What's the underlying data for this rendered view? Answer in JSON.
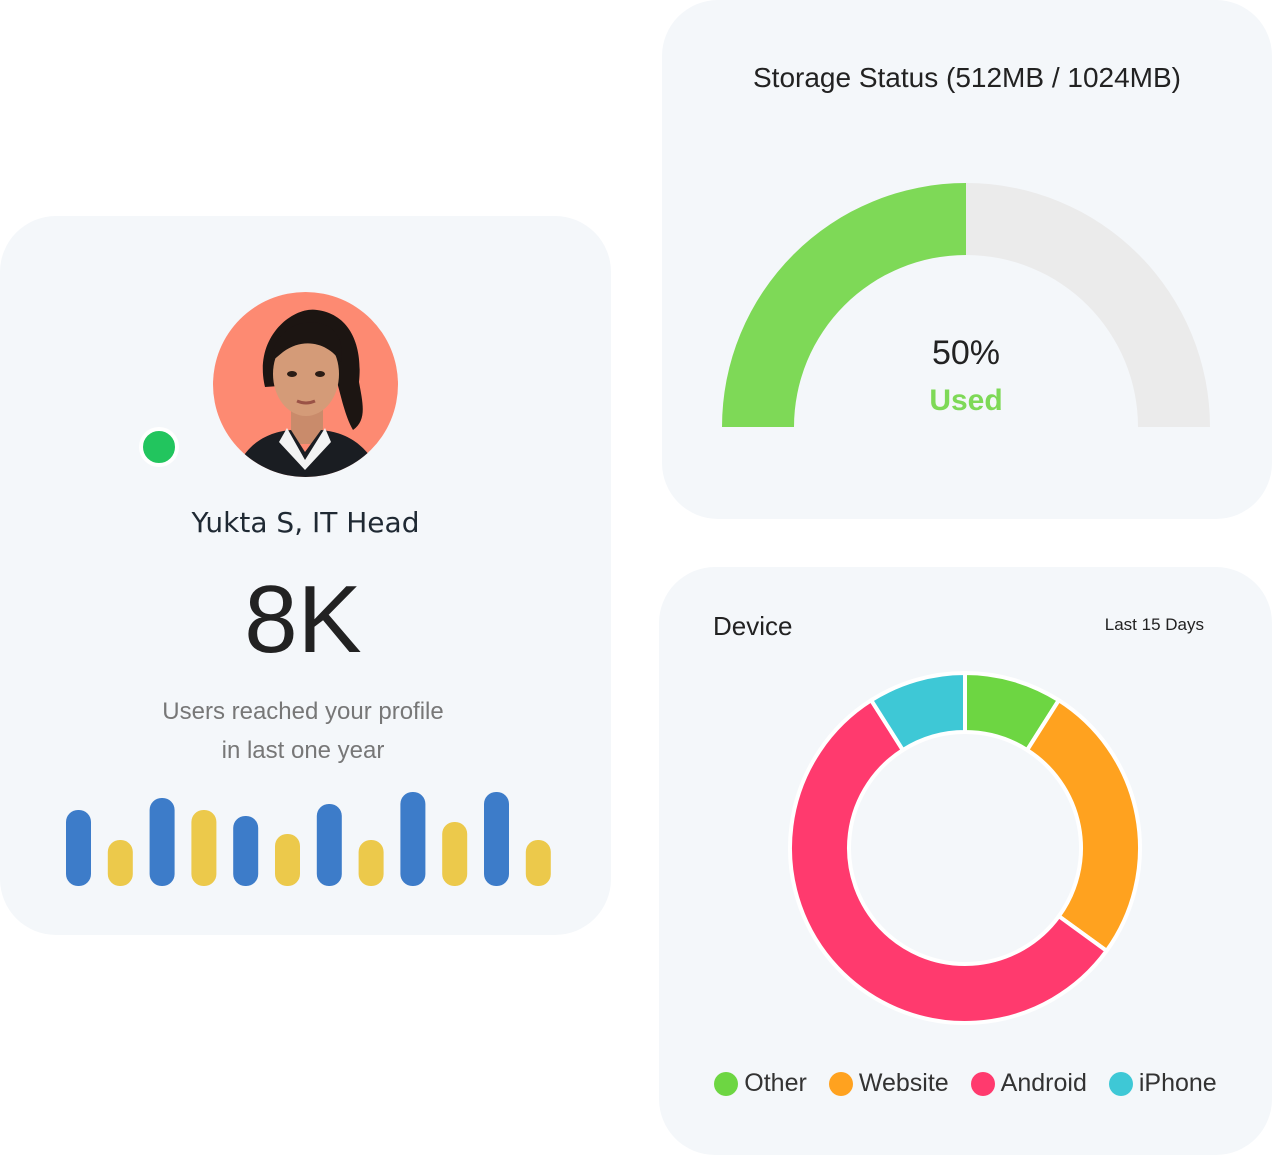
{
  "profile": {
    "name": "Yukta S, IT Head",
    "count": "8K",
    "caption_line1": "Users reached your profile",
    "caption_line2": "in last one year",
    "online": true,
    "status_color": "#22c55e",
    "avatar_bg": "#fd8a72"
  },
  "activity_bars": {
    "values": [
      76,
      46,
      88,
      76,
      70,
      52,
      82,
      46,
      94,
      64,
      94,
      46
    ],
    "colors": [
      "#3d7cc9",
      "#ecc94b",
      "#3d7cc9",
      "#ecc94b",
      "#3d7cc9",
      "#ecc94b",
      "#3d7cc9",
      "#ecc94b",
      "#3d7cc9",
      "#ecc94b",
      "#3d7cc9",
      "#ecc94b"
    ]
  },
  "storage": {
    "title": "Storage Status (512MB / 1024MB)",
    "percent_text": "50%",
    "label": "Used",
    "used_fraction": 0.5,
    "used_color": "#7ed957",
    "free_color": "#ebebeb"
  },
  "device": {
    "title": "Device",
    "range": "Last 15 Days",
    "chart_data": {
      "type": "pie",
      "categories": [
        "Other",
        "Website",
        "Android",
        "iPhone"
      ],
      "values": [
        9,
        26,
        56,
        9
      ],
      "colors": [
        "#6dd642",
        "#ffa21f",
        "#ff3a6e",
        "#3ec8d6"
      ]
    },
    "legend": [
      {
        "label": "Other",
        "color": "#6dd642"
      },
      {
        "label": "Website",
        "color": "#ffa21f"
      },
      {
        "label": "Android",
        "color": "#ff3a6e"
      },
      {
        "label": "iPhone",
        "color": "#3ec8d6"
      }
    ]
  }
}
